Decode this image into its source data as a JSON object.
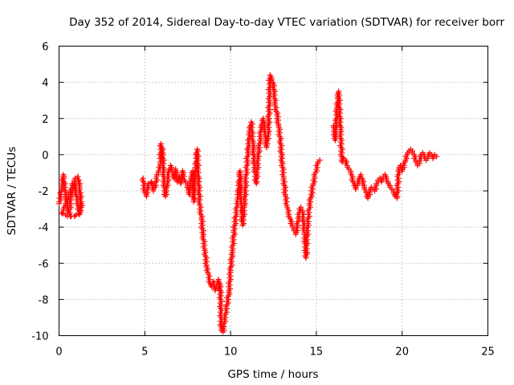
{
  "chart_data": {
    "type": "scatter",
    "title": "Day 352 of 2014, Sidereal Day-to-day VTEC variation (SDTVAR) for receiver borr",
    "xlabel": "GPS time / hours",
    "ylabel": "SDTVAR / TECUs",
    "xlim": [
      0,
      25
    ],
    "ylim": [
      -10,
      6
    ],
    "xticks": [
      "0",
      "5",
      "10",
      "15",
      "20",
      "25"
    ],
    "yticks": [
      "-10",
      "-8",
      "-6",
      "-4",
      "-2",
      "0",
      "2",
      "4",
      "6"
    ],
    "xtick_values": [
      0,
      5,
      10,
      15,
      20,
      25
    ],
    "ytick_values": [
      -10,
      -8,
      -6,
      -4,
      -2,
      0,
      2,
      4,
      6
    ],
    "grid": true,
    "marker": "+",
    "series": [
      {
        "name": "SDTVAR",
        "color": "#ff0000",
        "points": [
          [
            0.0,
            -2.7
          ],
          [
            0.1,
            -2.2
          ],
          [
            0.2,
            -1.6
          ],
          [
            0.25,
            -1.1
          ],
          [
            0.35,
            -2.0
          ],
          [
            0.45,
            -2.6
          ],
          [
            0.5,
            -3.1
          ],
          [
            0.6,
            -3.3
          ],
          [
            0.7,
            -2.4
          ],
          [
            0.8,
            -1.9
          ],
          [
            0.9,
            -1.5
          ],
          [
            1.0,
            -2.1
          ],
          [
            1.1,
            -2.8
          ],
          [
            1.2,
            -3.3
          ],
          [
            1.3,
            -2.9
          ],
          [
            1.2,
            -1.8
          ],
          [
            1.1,
            -1.2
          ],
          [
            0.9,
            -1.4
          ],
          [
            0.7,
            -1.9
          ],
          [
            0.5,
            -2.5
          ],
          [
            0.3,
            -2.9
          ],
          [
            0.15,
            -3.2
          ],
          [
            0.5,
            -3.4
          ],
          [
            0.9,
            -3.4
          ],
          [
            1.2,
            -3.2
          ],
          [
            1.3,
            -2.7
          ],
          [
            4.9,
            -1.3
          ],
          [
            5.0,
            -2.1
          ],
          [
            5.1,
            -2.3
          ],
          [
            5.2,
            -1.6
          ],
          [
            5.4,
            -1.5
          ],
          [
            5.5,
            -2.0
          ],
          [
            5.6,
            -1.8
          ],
          [
            5.7,
            -1.2
          ],
          [
            5.8,
            -0.9
          ],
          [
            5.9,
            -0.5
          ],
          [
            5.95,
            0.6
          ],
          [
            6.05,
            0.1
          ],
          [
            6.1,
            -1.4
          ],
          [
            6.2,
            -2.3
          ],
          [
            6.3,
            -1.6
          ],
          [
            6.4,
            -1.0
          ],
          [
            6.5,
            -0.6
          ],
          [
            6.6,
            -0.9
          ],
          [
            6.7,
            -1.3
          ],
          [
            6.8,
            -0.8
          ],
          [
            6.9,
            -1.5
          ],
          [
            7.0,
            -1.2
          ],
          [
            7.1,
            -1.6
          ],
          [
            7.2,
            -0.9
          ],
          [
            7.3,
            -1.4
          ],
          [
            7.5,
            -1.7
          ],
          [
            7.6,
            -2.2
          ],
          [
            7.7,
            -1.3
          ],
          [
            7.8,
            -0.9
          ],
          [
            7.85,
            -2.6
          ],
          [
            7.9,
            -1.6
          ],
          [
            8.05,
            0.3
          ],
          [
            8.1,
            -0.8
          ],
          [
            8.2,
            -2.8
          ],
          [
            8.3,
            -3.5
          ],
          [
            8.4,
            -4.5
          ],
          [
            8.5,
            -5.3
          ],
          [
            8.6,
            -6.1
          ],
          [
            8.7,
            -6.6
          ],
          [
            8.8,
            -7.1
          ],
          [
            8.9,
            -7.3
          ],
          [
            9.0,
            -7.0
          ],
          [
            9.1,
            -7.5
          ],
          [
            9.2,
            -7.2
          ],
          [
            9.3,
            -6.9
          ],
          [
            9.35,
            -7.5
          ],
          [
            9.4,
            -7.2
          ],
          [
            9.45,
            -9.7
          ],
          [
            9.55,
            -9.8
          ],
          [
            9.9,
            -7.6
          ],
          [
            10.0,
            -6.4
          ],
          [
            10.1,
            -5.3
          ],
          [
            10.2,
            -4.3
          ],
          [
            10.3,
            -3.4
          ],
          [
            10.4,
            -2.5
          ],
          [
            10.5,
            -1.6
          ],
          [
            10.55,
            -0.9
          ],
          [
            10.6,
            -2.3
          ],
          [
            10.7,
            -3.9
          ],
          [
            10.8,
            -2.9
          ],
          [
            10.9,
            -1.3
          ],
          [
            11.0,
            0.1
          ],
          [
            11.1,
            1.2
          ],
          [
            11.2,
            1.8
          ],
          [
            11.3,
            0.6
          ],
          [
            11.4,
            -0.8
          ],
          [
            11.5,
            -1.6
          ],
          [
            11.6,
            -0.3
          ],
          [
            11.7,
            0.8
          ],
          [
            11.8,
            1.6
          ],
          [
            11.9,
            2.0
          ],
          [
            12.0,
            1.3
          ],
          [
            12.1,
            0.4
          ],
          [
            12.2,
            1.2
          ],
          [
            12.3,
            4.4
          ],
          [
            12.4,
            4.2
          ],
          [
            12.5,
            3.9
          ],
          [
            12.6,
            2.8
          ],
          [
            12.7,
            2.2
          ],
          [
            12.8,
            1.6
          ],
          [
            12.9,
            0.8
          ],
          [
            13.0,
            -0.4
          ],
          [
            13.1,
            -1.3
          ],
          [
            13.2,
            -2.3
          ],
          [
            13.3,
            -2.9
          ],
          [
            13.4,
            -3.3
          ],
          [
            13.5,
            -3.6
          ],
          [
            13.6,
            -3.9
          ],
          [
            13.7,
            -4.2
          ],
          [
            13.8,
            -4.4
          ],
          [
            13.9,
            -3.9
          ],
          [
            14.0,
            -3.2
          ],
          [
            14.1,
            -2.9
          ],
          [
            14.2,
            -3.2
          ],
          [
            14.3,
            -4.3
          ],
          [
            14.4,
            -5.7
          ],
          [
            14.5,
            -3.8
          ],
          [
            14.6,
            -2.8
          ],
          [
            14.7,
            -2.2
          ],
          [
            14.8,
            -1.7
          ],
          [
            14.9,
            -1.2
          ],
          [
            15.0,
            -0.8
          ],
          [
            15.1,
            -0.4
          ],
          [
            15.2,
            -0.3
          ],
          [
            16.0,
            1.6
          ],
          [
            16.1,
            0.8
          ],
          [
            16.2,
            2.6
          ],
          [
            16.3,
            3.5
          ],
          [
            16.4,
            1.4
          ],
          [
            16.5,
            -0.4
          ],
          [
            16.6,
            -0.2
          ],
          [
            16.7,
            -0.3
          ],
          [
            16.8,
            -0.6
          ],
          [
            16.9,
            -0.8
          ],
          [
            17.0,
            -1.0
          ],
          [
            17.1,
            -1.3
          ],
          [
            17.2,
            -1.7
          ],
          [
            17.3,
            -1.9
          ],
          [
            17.4,
            -1.6
          ],
          [
            17.5,
            -1.3
          ],
          [
            17.6,
            -1.1
          ],
          [
            17.7,
            -1.4
          ],
          [
            17.8,
            -1.8
          ],
          [
            17.9,
            -2.1
          ],
          [
            18.0,
            -2.4
          ],
          [
            18.1,
            -2.1
          ],
          [
            18.2,
            -1.8
          ],
          [
            18.3,
            -1.9
          ],
          [
            18.4,
            -2.0
          ],
          [
            18.5,
            -1.6
          ],
          [
            18.6,
            -1.5
          ],
          [
            18.7,
            -1.3
          ],
          [
            18.8,
            -1.5
          ],
          [
            18.9,
            -1.2
          ],
          [
            19.0,
            -1.1
          ],
          [
            19.1,
            -1.3
          ],
          [
            19.2,
            -1.6
          ],
          [
            19.3,
            -1.8
          ],
          [
            19.4,
            -1.9
          ],
          [
            19.5,
            -2.1
          ],
          [
            19.6,
            -2.3
          ],
          [
            19.7,
            -2.4
          ],
          [
            19.8,
            -0.8
          ],
          [
            19.9,
            -0.6
          ],
          [
            20.0,
            -0.9
          ],
          [
            20.1,
            -0.6
          ],
          [
            20.2,
            -0.3
          ],
          [
            20.3,
            0.0
          ],
          [
            20.4,
            0.2
          ],
          [
            20.5,
            0.3
          ],
          [
            20.6,
            0.2
          ],
          [
            20.7,
            0.0
          ],
          [
            20.8,
            -0.3
          ],
          [
            20.9,
            -0.6
          ],
          [
            21.0,
            -0.4
          ],
          [
            21.1,
            0.0
          ],
          [
            21.2,
            0.1
          ],
          [
            21.3,
            -0.1
          ],
          [
            21.4,
            -0.3
          ],
          [
            21.5,
            -0.1
          ],
          [
            21.6,
            0.1
          ],
          [
            21.7,
            0.0
          ],
          [
            21.8,
            -0.2
          ],
          [
            21.9,
            0.0
          ],
          [
            22.0,
            -0.1
          ]
        ]
      }
    ]
  }
}
